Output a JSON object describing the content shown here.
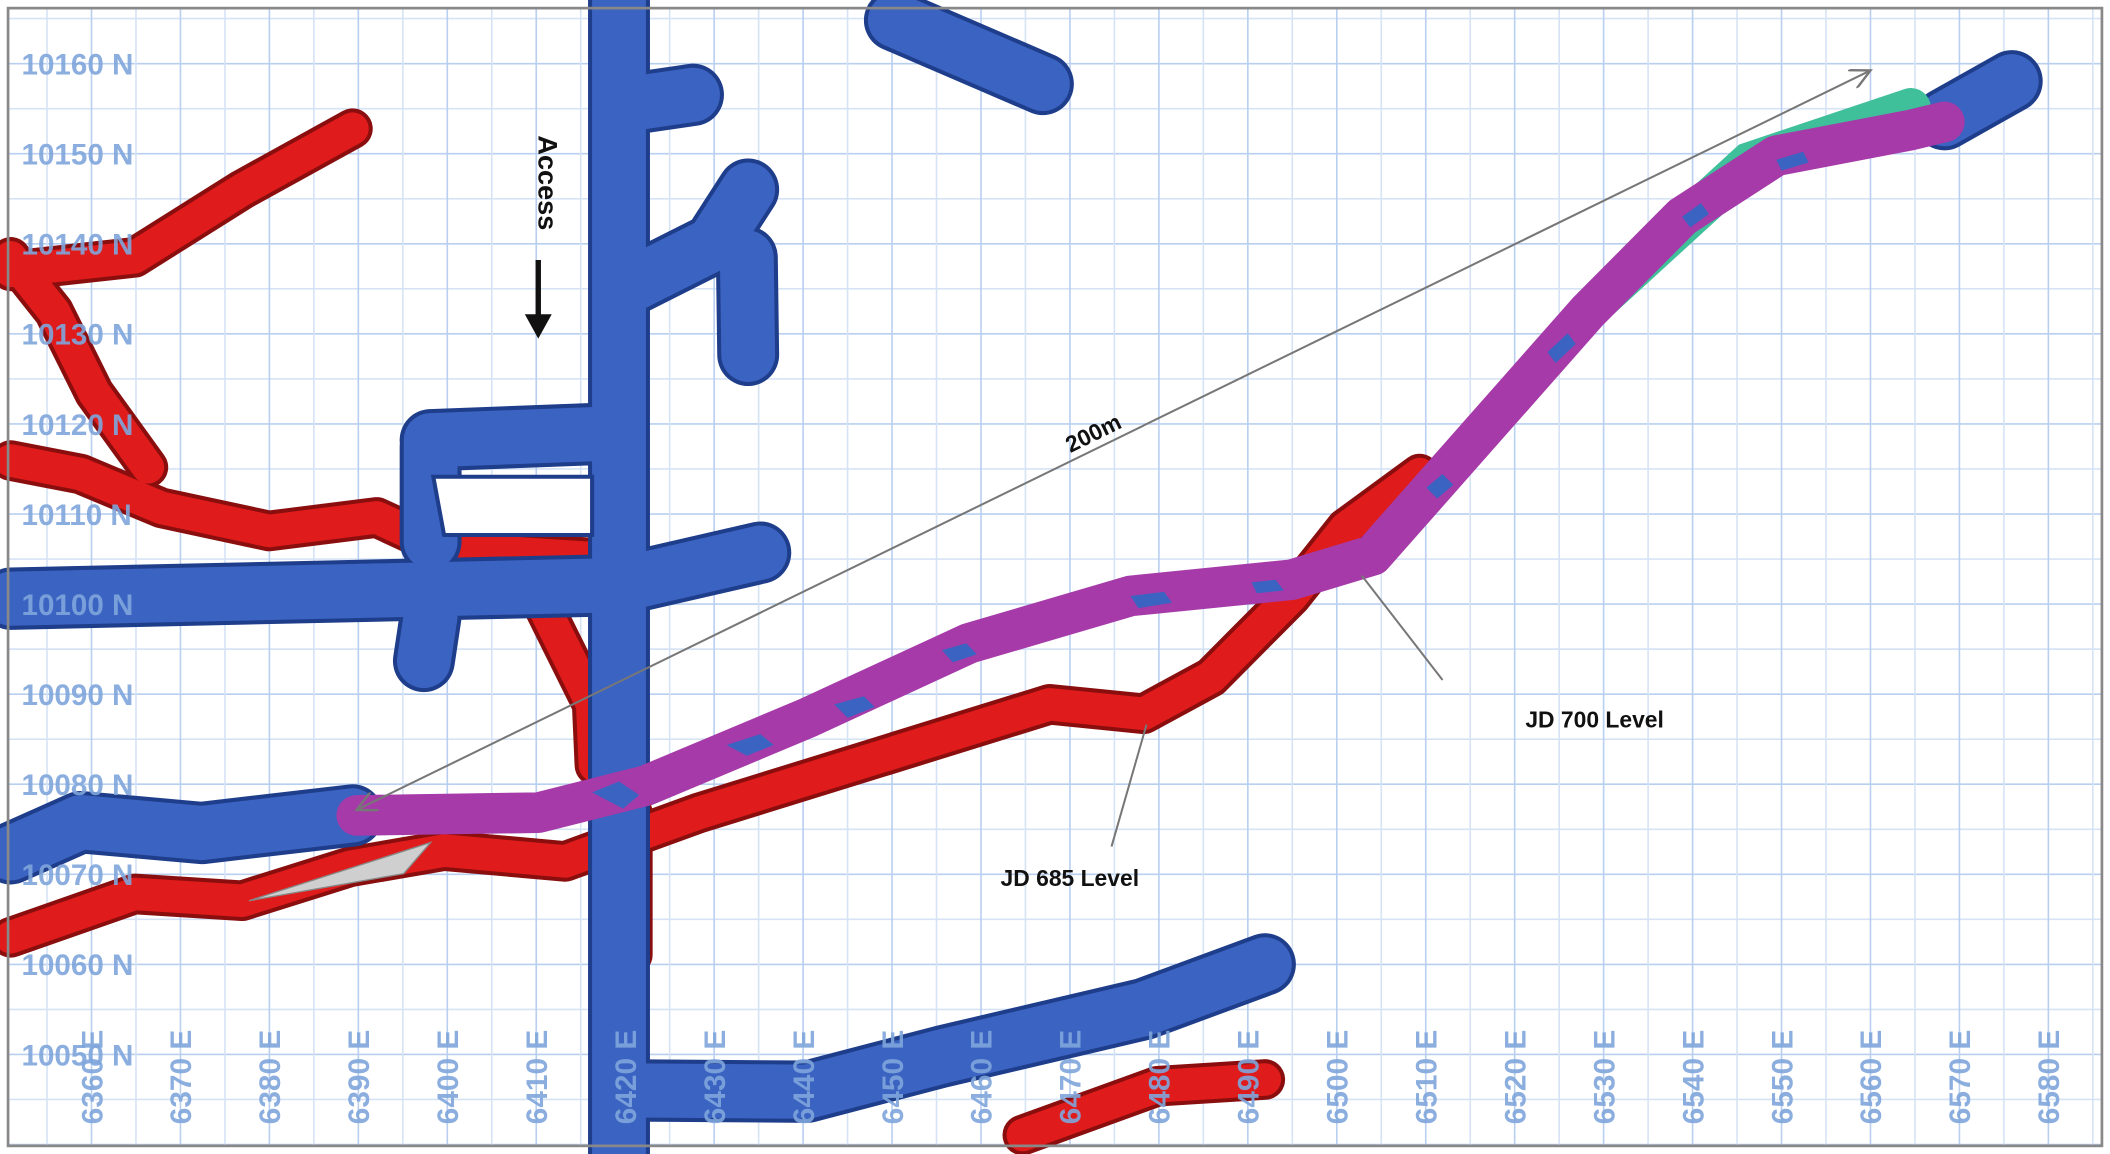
{
  "northings": [
    "10160 N",
    "10150 N",
    "10140 N",
    "10130 N",
    "10120 N",
    "10110 N",
    "10100 N",
    "10090 N",
    "10080 N",
    "10070 N",
    "10060 N",
    "10050 N"
  ],
  "eastings": [
    "6360 E",
    "6370 E",
    "6380 E",
    "6390 E",
    "6400 E",
    "6410 E",
    "6420 E",
    "6430 E",
    "6440 E",
    "6450 E",
    "6460 E",
    "6470 E",
    "6480 E",
    "6490 E",
    "6500 E",
    "6510 E",
    "6520 E",
    "6530 E",
    "6540 E",
    "6550 E",
    "6560 E",
    "6570 E",
    "6580 E"
  ],
  "annotations": {
    "access": "Access",
    "distance": "200m",
    "jd700": "JD 700 Level",
    "jd685": "JD 685 Level"
  }
}
